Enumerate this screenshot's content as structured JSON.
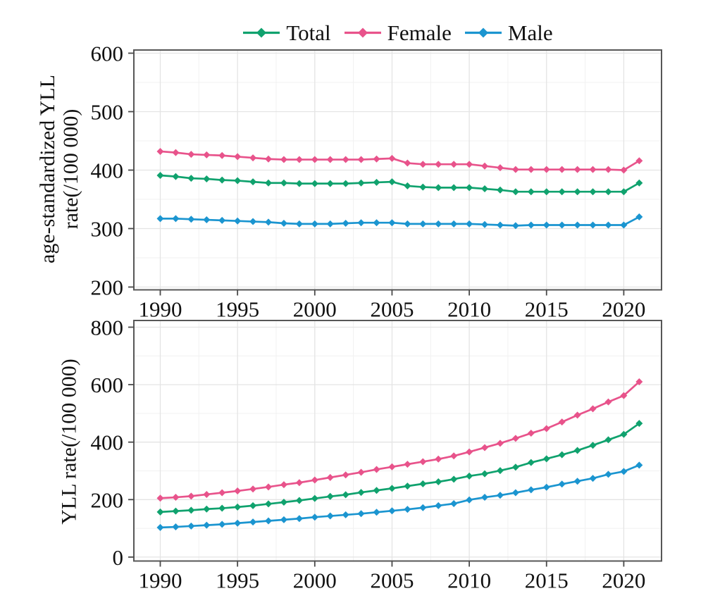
{
  "figure": {
    "legend": {
      "position": "top",
      "items": [
        {
          "label": "Total",
          "color": "#10a26e"
        },
        {
          "label": "Female",
          "color": "#e8538b"
        },
        {
          "label": "Male",
          "color": "#1b95d0"
        }
      ]
    }
  },
  "chart_data": [
    {
      "type": "line",
      "panel": "top",
      "title": "",
      "xlabel": "",
      "ylabel": "age-standardized YLL rate(/100 000)",
      "ylabel_lines": [
        "age-standardized YLL",
        "rate(/100 000)"
      ],
      "grid": true,
      "legend_position": "top",
      "marker": "diamond",
      "xlim": [
        1988.3,
        2022.4
      ],
      "ylim": [
        200,
        600
      ],
      "xticks": [
        1990,
        1995,
        2000,
        2005,
        2010,
        2015,
        2020
      ],
      "yticks": [
        200,
        300,
        400,
        500,
        600
      ],
      "x": [
        1990,
        1991,
        1992,
        1993,
        1994,
        1995,
        1996,
        1997,
        1998,
        1999,
        2000,
        2001,
        2002,
        2003,
        2004,
        2005,
        2006,
        2007,
        2008,
        2009,
        2010,
        2011,
        2012,
        2013,
        2014,
        2015,
        2016,
        2017,
        2018,
        2019,
        2020,
        2021
      ],
      "series": [
        {
          "name": "Total",
          "color": "#10a26e",
          "values": [
            391,
            389,
            386,
            385,
            383,
            382,
            380,
            378,
            378,
            377,
            377,
            377,
            377,
            378,
            379,
            380,
            373,
            371,
            370,
            370,
            370,
            368,
            366,
            363,
            363,
            363,
            363,
            363,
            363,
            363,
            363,
            378
          ]
        },
        {
          "name": "Female",
          "color": "#e8538b",
          "values": [
            432,
            430,
            427,
            426,
            425,
            423,
            421,
            419,
            418,
            418,
            418,
            418,
            418,
            418,
            419,
            420,
            412,
            410,
            410,
            410,
            410,
            407,
            404,
            401,
            401,
            401,
            401,
            401,
            401,
            401,
            400,
            416
          ]
        },
        {
          "name": "Male",
          "color": "#1b95d0",
          "values": [
            317,
            317,
            316,
            315,
            314,
            313,
            312,
            311,
            309,
            308,
            308,
            308,
            309,
            310,
            310,
            310,
            308,
            308,
            308,
            308,
            308,
            307,
            306,
            305,
            306,
            306,
            306,
            306,
            306,
            306,
            306,
            320
          ]
        }
      ]
    },
    {
      "type": "line",
      "panel": "bottom",
      "title": "",
      "xlabel": "",
      "ylabel": "YLL rate(/100 000)",
      "ylabel_lines": [
        "YLL rate(/100 000)"
      ],
      "grid": true,
      "legend_position": "top",
      "marker": "diamond",
      "xlim": [
        1988.3,
        2022.4
      ],
      "ylim": [
        0,
        800
      ],
      "xticks": [
        1990,
        1995,
        2000,
        2005,
        2010,
        2015,
        2020
      ],
      "yticks": [
        0,
        200,
        400,
        600,
        800
      ],
      "x": [
        1990,
        1991,
        1992,
        1993,
        1994,
        1995,
        1996,
        1997,
        1998,
        1999,
        2000,
        2001,
        2002,
        2003,
        2004,
        2005,
        2006,
        2007,
        2008,
        2009,
        2010,
        2011,
        2012,
        2013,
        2014,
        2015,
        2016,
        2017,
        2018,
        2019,
        2020,
        2021
      ],
      "series": [
        {
          "name": "Total",
          "color": "#10a26e",
          "values": [
            157,
            160,
            163,
            167,
            170,
            174,
            179,
            185,
            191,
            197,
            204,
            211,
            217,
            225,
            232,
            239,
            247,
            255,
            262,
            271,
            282,
            290,
            301,
            313,
            329,
            342,
            356,
            371,
            389,
            408,
            427,
            465
          ]
        },
        {
          "name": "Female",
          "color": "#e8538b",
          "values": [
            205,
            208,
            212,
            218,
            224,
            230,
            237,
            244,
            252,
            259,
            268,
            277,
            286,
            295,
            305,
            314,
            323,
            332,
            341,
            352,
            366,
            381,
            396,
            413,
            431,
            447,
            470,
            494,
            516,
            540,
            562,
            610
          ]
        },
        {
          "name": "Male",
          "color": "#1b95d0",
          "values": [
            103,
            105,
            108,
            111,
            114,
            118,
            122,
            126,
            130,
            134,
            139,
            143,
            147,
            151,
            156,
            161,
            166,
            172,
            179,
            186,
            199,
            208,
            215,
            224,
            234,
            243,
            254,
            264,
            274,
            288,
            298,
            320
          ]
        }
      ]
    }
  ]
}
